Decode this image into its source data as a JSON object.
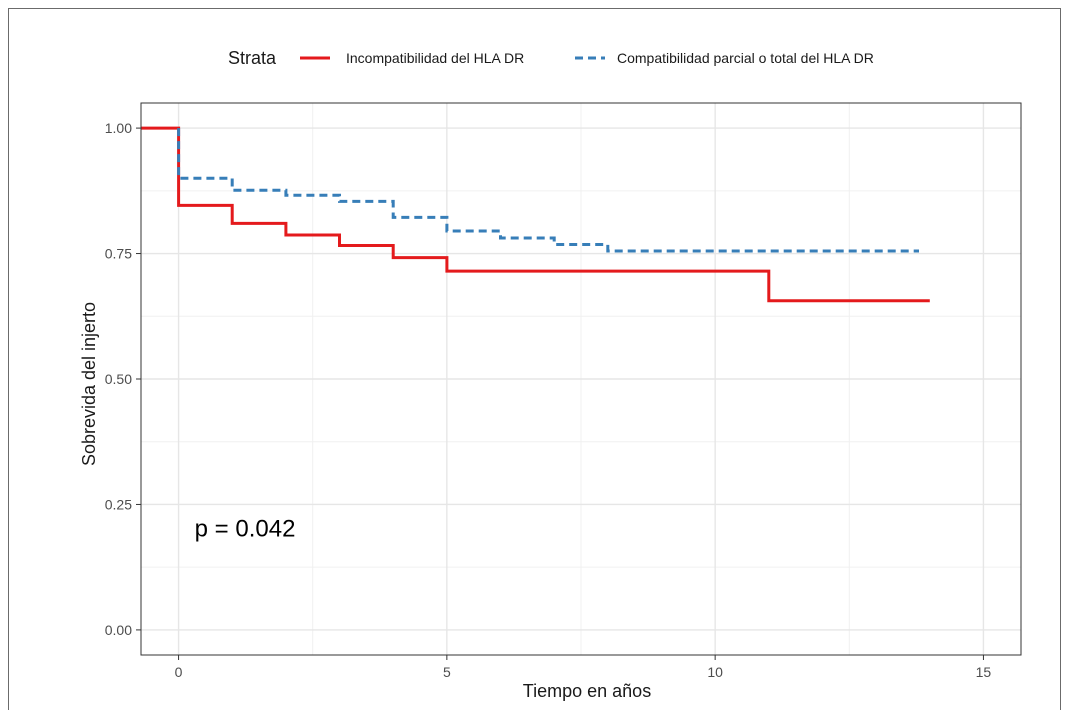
{
  "chart_data": {
    "type": "line",
    "subtype": "kaplan-meier-step",
    "title": "",
    "xlabel": "Tiempo en años",
    "ylabel": "Sobrevida del injerto",
    "xlim": [
      -0.7,
      15.7
    ],
    "ylim": [
      -0.05,
      1.05
    ],
    "x_ticks": [
      0,
      5,
      10,
      15
    ],
    "x_tick_labels": [
      "0",
      "5",
      "10",
      "15"
    ],
    "y_ticks": [
      0,
      0.25,
      0.5,
      0.75,
      1.0
    ],
    "y_tick_labels": [
      "0.00",
      "0.25",
      "0.50",
      "0.75",
      "1.00"
    ],
    "grid": true,
    "legend": {
      "title": "Strata",
      "position": "top"
    },
    "annotation": "p = 0.042",
    "series": [
      {
        "name": "Incompatibilidad del HLA DR",
        "color": "#e41a1c",
        "dash": "solid",
        "points": [
          [
            -0.7,
            1.0
          ],
          [
            0,
            1.0
          ],
          [
            0,
            0.846
          ],
          [
            1,
            0.846
          ],
          [
            1,
            0.81
          ],
          [
            2,
            0.81
          ],
          [
            2,
            0.787
          ],
          [
            3,
            0.787
          ],
          [
            3,
            0.766
          ],
          [
            4,
            0.766
          ],
          [
            4,
            0.742
          ],
          [
            5,
            0.742
          ],
          [
            5,
            0.715
          ],
          [
            11,
            0.715
          ],
          [
            11,
            0.656
          ],
          [
            14,
            0.656
          ]
        ]
      },
      {
        "name": "Compatibilidad parcial o total del HLA DR",
        "color": "#377eb8",
        "dash": "dashed",
        "points": [
          [
            0,
            1.0
          ],
          [
            0,
            0.9
          ],
          [
            1,
            0.9
          ],
          [
            1,
            0.876
          ],
          [
            2,
            0.876
          ],
          [
            2,
            0.866
          ],
          [
            3,
            0.866
          ],
          [
            3,
            0.854
          ],
          [
            4,
            0.854
          ],
          [
            4,
            0.822
          ],
          [
            5,
            0.822
          ],
          [
            5,
            0.795
          ],
          [
            6,
            0.795
          ],
          [
            6,
            0.781
          ],
          [
            7,
            0.781
          ],
          [
            7,
            0.768
          ],
          [
            8,
            0.768
          ],
          [
            8,
            0.755
          ],
          [
            13.8,
            0.755
          ]
        ]
      }
    ]
  }
}
